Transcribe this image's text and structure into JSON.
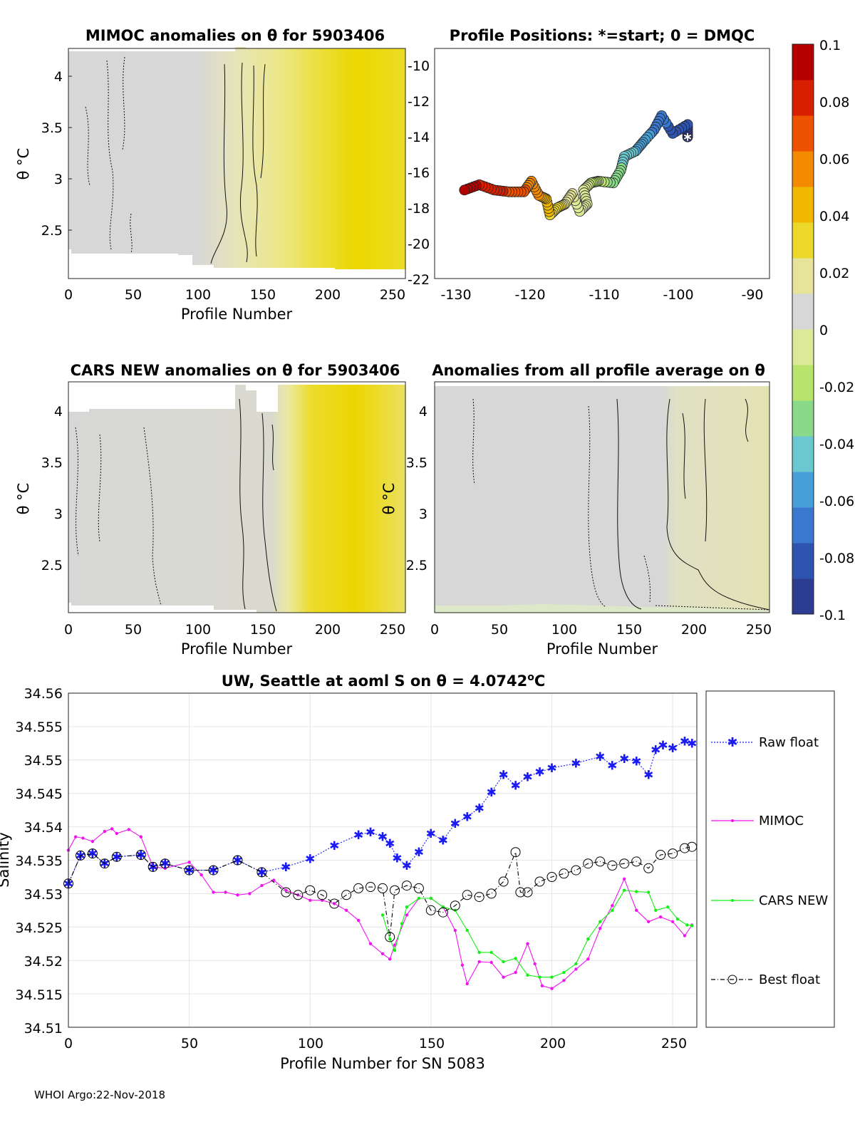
{
  "colors": {
    "gray": "#d7d7d7",
    "pale_yellow": "#e8e6b0",
    "yellow": "#ead91a",
    "deep_yellow": "#ecd700",
    "raw_float": "#1a1af2",
    "mimoc": "#f013f0",
    "cars_new": "#13f013",
    "best_float": "#000000",
    "colorbar": [
      "#2c3c90",
      "#2e54b0",
      "#3a78d0",
      "#48a0d8",
      "#6cc8d0",
      "#8ad88a",
      "#b8e46c",
      "#dcea98",
      "#d7d7d7",
      "#e6e49a",
      "#ecd82a",
      "#f2b800",
      "#f48a00",
      "#ec5200",
      "#d82000",
      "#b40000"
    ]
  },
  "panel1": {
    "title": "MIMOC anomalies on θ  for 5903406",
    "xlabel": "Profile Number",
    "ylabel": "θ °C",
    "xticks": [
      "0",
      "50",
      "100",
      "150",
      "200",
      "250"
    ],
    "yticks": [
      "4",
      "3.5",
      "3",
      "2.5"
    ]
  },
  "panel2": {
    "title": "Profile Positions: *=start; 0 = DMQC",
    "xticks": [
      "-130",
      "-120",
      "-110",
      "-100",
      "-90"
    ],
    "yticks": [
      "-10",
      "-12",
      "-14",
      "-16",
      "-18",
      "-20",
      "-22"
    ]
  },
  "panel3": {
    "title": "CARS NEW anomalies on θ for 5903406",
    "xlabel": "Profile Number",
    "ylabel": "θ °C",
    "xticks": [
      "0",
      "50",
      "100",
      "150",
      "200",
      "250"
    ],
    "yticks": [
      "4",
      "3.5",
      "3",
      "2.5"
    ]
  },
  "panel4": {
    "title": "Anomalies from all profile average on θ",
    "xlabel": "Profile Number",
    "ylabel": "θ °C",
    "xticks": [
      "0",
      "50",
      "100",
      "150",
      "200",
      "250"
    ],
    "yticks": [
      "4",
      "3.5",
      "3",
      "2.5"
    ]
  },
  "colorbar": {
    "ticks": [
      "0.1",
      "0.08",
      "0.06",
      "0.04",
      "0.02",
      "0",
      "-0.02",
      "-0.04",
      "-0.06",
      "-0.08",
      "-0.1"
    ]
  },
  "panel5": {
    "title": "UW, Seattle at aoml S on θ = 4.0742",
    "title_sup": "o",
    "title_unit": "C",
    "xlabel": "Profile Number for SN 5083",
    "ylabel": "Salinity",
    "xticks": [
      "0",
      "50",
      "100",
      "150",
      "200",
      "250"
    ],
    "yticks": [
      "34.56",
      "34.555",
      "34.55",
      "34.545",
      "34.54",
      "34.535",
      "34.53",
      "34.525",
      "34.52",
      "34.515",
      "34.51"
    ]
  },
  "legend": {
    "raw_float": "Raw float",
    "mimoc": "MIMOC",
    "cars_new": "CARS NEW",
    "best_float": "Best float"
  },
  "footer": "WHOI Argo:22-Nov-2018",
  "chart_data": [
    {
      "type": "heatmap",
      "title": "MIMOC anomalies on θ  for 5903406",
      "xlabel": "Profile Number",
      "ylabel": "θ °C",
      "xlim": [
        0,
        260
      ],
      "ylim": [
        2.05,
        4.25
      ],
      "clim": [
        -0.1,
        0.1
      ],
      "bands": [
        {
          "from": 0,
          "to": 100,
          "value": 0.0
        },
        {
          "from": 100,
          "to": 120,
          "value": 0.005
        },
        {
          "from": 120,
          "to": 150,
          "value": 0.012
        },
        {
          "from": 150,
          "to": 170,
          "value": 0.018
        },
        {
          "from": 170,
          "to": 200,
          "value": 0.026
        },
        {
          "from": 200,
          "to": 260,
          "value": 0.03
        }
      ]
    },
    {
      "type": "scatter",
      "title": "Profile Positions: *=start; 0 = DMQC",
      "xlim": [
        -132,
        -87
      ],
      "ylim": [
        -22,
        -9
      ],
      "track": [
        [
          -98,
          -14
        ],
        [
          -98,
          -13.3
        ],
        [
          -100,
          -13.8
        ],
        [
          -101.5,
          -12.8
        ],
        [
          -102.5,
          -13.6
        ],
        [
          -104,
          -14.3
        ],
        [
          -105,
          -14.8
        ],
        [
          -106.5,
          -15.1
        ],
        [
          -107,
          -15.9
        ],
        [
          -108,
          -16.6
        ],
        [
          -110,
          -16.5
        ],
        [
          -111,
          -16.6
        ],
        [
          -112,
          -17
        ],
        [
          -111.5,
          -17.8
        ],
        [
          -112.5,
          -18.2
        ],
        [
          -113.5,
          -17.2
        ],
        [
          -114.5,
          -17.8
        ],
        [
          -115.5,
          -18
        ],
        [
          -116.5,
          -18.4
        ],
        [
          -117,
          -17.5
        ],
        [
          -118,
          -17.3
        ],
        [
          -119,
          -16.5
        ],
        [
          -120,
          -17.1
        ],
        [
          -122,
          -17.1
        ],
        [
          -124,
          -17
        ],
        [
          -126,
          -16.7
        ],
        [
          -128,
          -17
        ]
      ],
      "start": [
        -98,
        -14
      ]
    },
    {
      "type": "heatmap",
      "title": "CARS NEW anomalies on θ for 5903406",
      "xlabel": "Profile Number",
      "ylabel": "θ °C",
      "xlim": [
        0,
        260
      ],
      "ylim": [
        2.05,
        4.25
      ],
      "clim": [
        -0.1,
        0.1
      ],
      "bands": [
        {
          "from": 0,
          "to": 130,
          "value": 0.0
        },
        {
          "from": 130,
          "to": 160,
          "value": 0.004
        },
        {
          "from": 160,
          "to": 180,
          "value": 0.02
        },
        {
          "from": 180,
          "to": 230,
          "value": 0.03
        },
        {
          "from": 230,
          "to": 260,
          "value": 0.024
        }
      ]
    },
    {
      "type": "heatmap",
      "title": "Anomalies from all profile average on θ",
      "xlabel": "Profile Number",
      "ylabel": "θ °C",
      "xlim": [
        0,
        260
      ],
      "ylim": [
        2.05,
        4.25
      ],
      "clim": [
        -0.1,
        0.1
      ],
      "bands": [
        {
          "from": 0,
          "to": 180,
          "value": 0.0
        },
        {
          "from": 180,
          "to": 260,
          "value": 0.008
        }
      ]
    },
    {
      "type": "line",
      "title": "UW, Seattle at aoml S on θ = 4.0742°C",
      "xlabel": "Profile Number for SN 5083",
      "ylabel": "Salinity",
      "xlim": [
        0,
        260
      ],
      "ylim": [
        34.51,
        34.56
      ],
      "grid": true,
      "legend": "right",
      "series": [
        {
          "name": "Raw float",
          "marker": "*",
          "color": "#1a1af2",
          "x": [
            0,
            5,
            10,
            15,
            20,
            30,
            35,
            40,
            50,
            60,
            70,
            80,
            90,
            100,
            110,
            120,
            125,
            130,
            133,
            136,
            140,
            145,
            150,
            155,
            160,
            165,
            170,
            175,
            180,
            185,
            190,
            195,
            200,
            210,
            220,
            225,
            230,
            235,
            240,
            243,
            246,
            250,
            255,
            258
          ],
          "y": [
            34.5315,
            34.5357,
            34.536,
            34.5345,
            34.5355,
            34.5358,
            34.534,
            34.5345,
            34.5335,
            34.5335,
            34.535,
            34.5332,
            34.534,
            34.5352,
            34.5372,
            34.5388,
            34.5392,
            34.5385,
            34.5375,
            34.5353,
            34.5342,
            34.5362,
            34.539,
            34.538,
            34.5405,
            34.5415,
            34.5428,
            34.5452,
            34.5478,
            34.5462,
            34.5475,
            34.5482,
            34.5488,
            34.5495,
            34.5505,
            34.5492,
            34.5502,
            34.5498,
            34.5478,
            34.5515,
            34.5522,
            34.5518,
            34.5528,
            34.5525
          ]
        },
        {
          "name": "MIMOC",
          "marker": ".",
          "color": "#f013f0",
          "x": [
            0,
            3,
            6,
            10,
            15,
            18,
            20,
            25,
            30,
            35,
            40,
            50,
            55,
            60,
            65,
            70,
            75,
            80,
            85,
            90,
            95,
            100,
            105,
            110,
            115,
            120,
            125,
            130,
            133,
            135,
            140,
            145,
            150,
            155,
            160,
            163,
            165,
            170,
            175,
            180,
            185,
            190,
            193,
            196,
            200,
            205,
            210,
            215,
            220,
            225,
            230,
            235,
            240,
            245,
            250,
            255,
            258
          ],
          "y": [
            34.5365,
            34.5385,
            34.5383,
            34.5378,
            34.5393,
            34.5397,
            34.539,
            34.5396,
            34.5385,
            34.534,
            34.5338,
            34.5347,
            34.5328,
            34.5302,
            34.5302,
            34.5298,
            34.53,
            34.5312,
            34.532,
            34.5305,
            34.5298,
            34.529,
            34.529,
            34.5285,
            34.5275,
            34.526,
            34.5225,
            34.521,
            34.5202,
            34.5223,
            34.5268,
            34.5293,
            34.5293,
            34.528,
            34.5245,
            34.5193,
            34.5165,
            34.5198,
            34.5197,
            34.5175,
            34.5182,
            34.5225,
            34.5195,
            34.5162,
            34.5158,
            34.517,
            34.5187,
            34.5202,
            34.5248,
            34.5282,
            34.5322,
            34.5275,
            34.5258,
            34.5265,
            34.5258,
            34.5237,
            34.5253
          ]
        },
        {
          "name": "CARS NEW",
          "marker": ".",
          "color": "#13f013",
          "x": [
            130,
            133,
            135,
            138,
            140,
            145,
            150,
            155,
            160,
            165,
            170,
            175,
            180,
            185,
            190,
            195,
            200,
            205,
            210,
            215,
            220,
            225,
            230,
            235,
            240,
            243,
            248,
            252,
            256,
            258
          ],
          "y": [
            34.5268,
            34.5232,
            34.5215,
            34.5255,
            34.528,
            34.5293,
            34.5293,
            34.528,
            34.5275,
            34.5245,
            34.5212,
            34.5212,
            34.5198,
            34.5203,
            34.5178,
            34.5175,
            34.5175,
            34.5182,
            34.5195,
            34.5232,
            34.5258,
            34.5275,
            34.5305,
            34.5303,
            34.5302,
            34.5275,
            34.528,
            34.5262,
            34.5253,
            34.5252
          ]
        },
        {
          "name": "Best float",
          "marker": "o",
          "color": "#000000",
          "x": [
            0,
            5,
            10,
            15,
            20,
            30,
            35,
            40,
            50,
            60,
            70,
            80,
            90,
            95,
            100,
            105,
            110,
            115,
            120,
            125,
            130,
            133,
            135,
            140,
            145,
            150,
            155,
            160,
            165,
            170,
            175,
            180,
            185,
            187,
            190,
            195,
            200,
            205,
            210,
            215,
            220,
            225,
            230,
            235,
            240,
            245,
            250,
            255,
            258
          ],
          "y": [
            34.5315,
            34.5357,
            34.536,
            34.5345,
            34.5355,
            34.5358,
            34.534,
            34.5345,
            34.5335,
            34.5335,
            34.535,
            34.5332,
            34.5302,
            34.5298,
            34.5305,
            34.5298,
            34.5285,
            34.5298,
            34.5308,
            34.531,
            34.5308,
            34.5235,
            34.5305,
            34.5312,
            34.5308,
            34.5275,
            34.5272,
            34.5282,
            34.5298,
            34.5295,
            34.53,
            34.5318,
            34.5362,
            34.5302,
            34.5302,
            34.5318,
            34.5325,
            34.533,
            34.5335,
            34.5345,
            34.5348,
            34.5342,
            34.5345,
            34.5348,
            34.5338,
            34.5358,
            34.536,
            34.5368,
            34.537
          ]
        }
      ]
    }
  ]
}
